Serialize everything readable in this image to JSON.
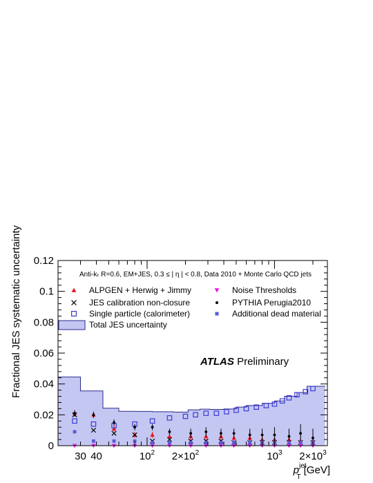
{
  "chart_data": {
    "type": "scatter",
    "x_scale": "log",
    "xlim": [
      20,
      2600
    ],
    "ylim": [
      0,
      0.12
    ],
    "y_ticks": [
      0,
      0.02,
      0.04,
      0.06,
      0.08,
      0.1,
      0.12
    ],
    "y_tick_labels": [
      "0",
      "0.02",
      "0.04",
      "0.06",
      "0.08",
      "0.1",
      "0.12"
    ],
    "x_ticks": [
      30,
      40,
      100,
      200,
      1000,
      2000
    ],
    "x_tick_labels": [
      {
        "base": "30",
        "exp": ""
      },
      {
        "base": "40",
        "exp": ""
      },
      {
        "base": "10",
        "exp": "2"
      },
      {
        "base": "2×10",
        "exp": "2"
      },
      {
        "base": "10",
        "exp": "3"
      },
      {
        "base": "2×10",
        "exp": "3"
      }
    ],
    "ylabel": "Fractional JES systematic uncertainty",
    "xlabel": {
      "p": "p",
      "sup": "jet",
      "sub": "T",
      "unit": "[GeV]"
    },
    "subtitle": "Anti-kₜ R=0.6, EM+JES, 0.3 ≤ | η | < 0.8, Data 2010 + Monte Carlo QCD jets",
    "atlas_label": "ATLAS",
    "preliminary_label": "Preliminary",
    "legend_entries": [
      {
        "name": "ALPGEN + Herwig + Jimmy",
        "marker": "triangle-up",
        "color": "#e8141c"
      },
      {
        "name": "JES calibration non-closure",
        "marker": "cross",
        "color": "#000000"
      },
      {
        "name": "Single particle (calorimeter)",
        "marker": "open-square",
        "color": "#3a3ad4"
      },
      {
        "name": "Total JES uncertainty",
        "marker": "band",
        "color": "#b9bdf0"
      },
      {
        "name": "Noise Thresholds",
        "marker": "triangle-down",
        "color": "#e619e6"
      },
      {
        "name": "PYTHIA Perugia2010",
        "marker": "dot",
        "color": "#000000"
      },
      {
        "name": "Additional dead material",
        "marker": "filled-square",
        "color": "#5a5ad6"
      }
    ],
    "total_band": {
      "edges": [
        20,
        30,
        45,
        60,
        80,
        110,
        160,
        210,
        260,
        310,
        400,
        500,
        600,
        800,
        1000,
        1200,
        1500,
        1800,
        2500
      ],
      "values": [
        0.0445,
        0.0355,
        0.0243,
        0.0223,
        0.0222,
        0.022,
        0.0218,
        0.0232,
        0.0237,
        0.0235,
        0.0238,
        0.025,
        0.026,
        0.0275,
        0.029,
        0.032,
        0.0345,
        0.0385
      ]
    },
    "series": [
      {
        "name": "ALPGEN + Herwig + Jimmy",
        "marker": "triangle-up",
        "color": "#e8141c",
        "x": [
          27,
          38,
          55,
          80,
          110,
          150,
          220,
          290,
          380,
          480,
          640,
          800,
          1000,
          1300,
          1600,
          2000
        ],
        "y": [
          0.021,
          0.02,
          0.011,
          0.007,
          0.007,
          0.006,
          0.006,
          0.006,
          0.006,
          0.005,
          0.005,
          0.004,
          0.004,
          0.004,
          0.003,
          0.003
        ],
        "err": [
          0.002,
          0.002,
          0.002,
          0.002,
          0.002,
          0.002,
          0.003,
          0.003,
          0.003,
          0.003,
          0.004,
          0.004,
          0.004,
          0.005,
          0.005,
          0.006
        ]
      },
      {
        "name": "JES calibration non-closure",
        "marker": "cross",
        "color": "#000000",
        "x": [
          27,
          38,
          55,
          80,
          110,
          150,
          220,
          290,
          380,
          480,
          640,
          800,
          1000,
          1300,
          1600,
          2000
        ],
        "y": [
          0.02,
          0.01,
          0.008,
          0.007,
          0.003,
          0.004,
          0.003,
          0.003,
          0.003,
          0.002,
          0.002,
          0.002,
          0.002,
          0.002,
          0.002,
          0.002
        ]
      },
      {
        "name": "Single particle (calorimeter)",
        "marker": "open-square",
        "color": "#3a3ad4",
        "x": [
          27,
          38,
          55,
          80,
          110,
          150,
          200,
          240,
          290,
          350,
          420,
          500,
          600,
          720,
          860,
          1000,
          1150,
          1300,
          1500,
          1750,
          2000
        ],
        "y": [
          0.016,
          0.014,
          0.013,
          0.014,
          0.016,
          0.018,
          0.019,
          0.02,
          0.021,
          0.021,
          0.022,
          0.023,
          0.024,
          0.025,
          0.026,
          0.027,
          0.029,
          0.031,
          0.033,
          0.035,
          0.037
        ]
      },
      {
        "name": "Noise Thresholds",
        "marker": "triangle-down",
        "color": "#e619e6",
        "x": [
          27,
          38,
          55,
          80,
          110,
          150,
          220,
          290,
          380,
          480,
          640,
          800,
          1000,
          1300,
          1600,
          2000
        ],
        "y": [
          0.0,
          0.0,
          0.0,
          0.0,
          0.0,
          0.0,
          0.0,
          0.0,
          0.0,
          0.0,
          0.0,
          0.0,
          0.0,
          0.0,
          0.0,
          0.0
        ]
      },
      {
        "name": "PYTHIA Perugia2010",
        "marker": "dot",
        "color": "#000000",
        "x": [
          27,
          38,
          55,
          80,
          110,
          150,
          220,
          290,
          380,
          480,
          640,
          800,
          1000,
          1300,
          1600,
          2000
        ],
        "y": [
          0.021,
          0.02,
          0.015,
          0.012,
          0.012,
          0.009,
          0.008,
          0.009,
          0.008,
          0.008,
          0.007,
          0.007,
          0.007,
          0.006,
          0.008,
          0.005
        ],
        "err": [
          0.002,
          0.002,
          0.002,
          0.002,
          0.002,
          0.002,
          0.003,
          0.003,
          0.003,
          0.003,
          0.004,
          0.004,
          0.005,
          0.005,
          0.006,
          0.006
        ]
      },
      {
        "name": "Additional dead material",
        "marker": "filled-square",
        "color": "#5a5ad6",
        "x": [
          27,
          38,
          55,
          80,
          110,
          150,
          220,
          290,
          380,
          480,
          640,
          800,
          1000,
          1300,
          1600,
          2000
        ],
        "y": [
          0.009,
          0.003,
          0.003,
          0.003,
          0.002,
          0.002,
          0.002,
          0.002,
          0.002,
          0.002,
          0.002,
          0.002,
          0.002,
          0.002,
          0.002,
          0.002
        ]
      }
    ]
  }
}
